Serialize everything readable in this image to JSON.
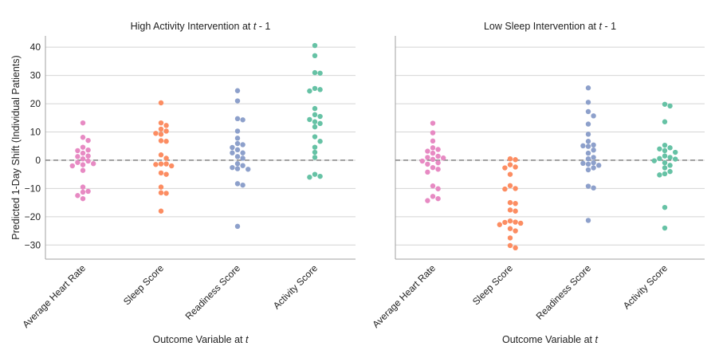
{
  "chart_data": [
    {
      "type": "scatter",
      "subtype": "swarm",
      "title_prefix": "High Activity Intervention at ",
      "title_var": "t",
      "title_suffix": " - 1",
      "xlabel_prefix": "Outcome Variable at ",
      "xlabel_var": "t",
      "ylabel": "Predicted 1-Day Shift (Individual Patients)",
      "ylim": [
        -35,
        44
      ],
      "yticks": [
        40,
        30,
        20,
        10,
        0,
        -10,
        -20,
        -30
      ],
      "grid": true,
      "reference_line": 0,
      "categories": [
        "Average Heart Rate",
        "Sleep Score",
        "Readiness Score",
        "Activity Score"
      ],
      "colors": [
        "#e78ac3",
        "#fc8d62",
        "#8da0cb",
        "#66c2a5"
      ],
      "series": [
        {
          "name": "Average Heart Rate",
          "values": [
            13.2,
            8.1,
            7.0,
            4.6,
            3.6,
            3.4,
            2.5,
            1.5,
            1.3,
            0.5,
            -0.3,
            -0.8,
            -1.2,
            -1.6,
            -2.0,
            -3.6,
            -9.5,
            -11.0,
            -11.3,
            -12.5,
            -13.6
          ]
        },
        {
          "name": "Sleep Score",
          "values": [
            20.3,
            13.2,
            12.3,
            11.0,
            10.3,
            9.5,
            9.2,
            6.9,
            6.7,
            1.9,
            0.7,
            -1.3,
            -1.3,
            -1.5,
            -2.0,
            -4.5,
            -5.0,
            -9.5,
            -11.5,
            -11.7,
            -18.0
          ]
        },
        {
          "name": "Readiness Score",
          "values": [
            24.6,
            21.0,
            14.7,
            14.3,
            10.3,
            7.8,
            5.9,
            5.5,
            4.5,
            3.7,
            2.6,
            2.6,
            1.3,
            0.7,
            -1.2,
            -1.9,
            -2.6,
            -3.0,
            -3.2,
            -8.3,
            -8.8,
            -23.4
          ]
        },
        {
          "name": "Activity Score",
          "values": [
            40.6,
            37.0,
            31.0,
            30.8,
            25.4,
            25.0,
            24.5,
            18.3,
            16.1,
            15.5,
            14.4,
            13.6,
            13.0,
            11.8,
            8.3,
            6.7,
            4.6,
            2.8,
            1.0,
            -5.0,
            -5.7,
            -6.0
          ]
        }
      ]
    },
    {
      "type": "scatter",
      "subtype": "swarm",
      "title_prefix": "Low Sleep Intervention at ",
      "title_var": "t",
      "title_suffix": " - 1",
      "xlabel_prefix": "Outcome Variable at ",
      "xlabel_var": "t",
      "ylim": [
        -35,
        44
      ],
      "yticks": [
        40,
        30,
        20,
        10,
        0,
        -10,
        -20,
        -30
      ],
      "grid": true,
      "reference_line": 0,
      "categories": [
        "Average Heart Rate",
        "Sleep Score",
        "Readiness Score",
        "Activity Score"
      ],
      "colors": [
        "#e78ac3",
        "#fc8d62",
        "#8da0cb",
        "#66c2a5"
      ],
      "series": [
        {
          "name": "Average Heart Rate",
          "values": [
            13.1,
            9.7,
            6.8,
            4.4,
            3.8,
            3.2,
            2.5,
            1.4,
            1.0,
            0.8,
            0.3,
            -0.3,
            -0.9,
            -1.4,
            -2.6,
            -3.2,
            -4.2,
            -9.1,
            -10.1,
            -12.8,
            -13.6,
            -14.3
          ]
        },
        {
          "name": "Sleep Score",
          "values": [
            0.5,
            0.2,
            -1.6,
            -2.4,
            -2.7,
            -5.0,
            -9.0,
            -10.0,
            -10.2,
            -15.0,
            -15.3,
            -17.6,
            -18.0,
            -21.5,
            -21.9,
            -22.0,
            -22.3,
            -22.8,
            -24.2,
            -25.0,
            -27.5,
            -30.2,
            -31.0
          ]
        },
        {
          "name": "Readiness Score",
          "values": [
            25.6,
            20.5,
            17.2,
            15.7,
            12.8,
            9.2,
            6.7,
            5.4,
            5.1,
            4.9,
            3.6,
            2.5,
            1.0,
            0.5,
            -0.9,
            -1.1,
            -1.4,
            -1.8,
            -2.7,
            -3.4,
            -9.2,
            -9.8,
            -21.3
          ]
        },
        {
          "name": "Activity Score",
          "values": [
            19.8,
            19.2,
            13.6,
            5.3,
            4.4,
            4.0,
            3.4,
            2.8,
            1.5,
            1.0,
            0.6,
            0.4,
            -0.2,
            -0.9,
            -1.8,
            -2.7,
            -4.0,
            -4.8,
            -5.2,
            -16.7,
            -24.0
          ]
        }
      ]
    }
  ]
}
